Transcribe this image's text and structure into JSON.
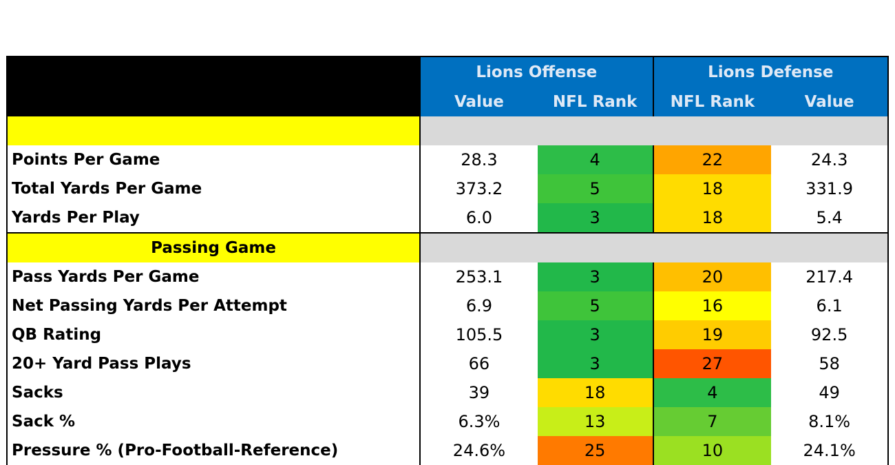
{
  "header": {
    "offense_title": "Lions Offense",
    "defense_title": "Lions Defense",
    "value_label": "Value",
    "rank_label": "NFL Rank"
  },
  "sections": [
    {
      "title": "",
      "rows": [
        {
          "label": "Points Per Game",
          "off_value": "28.3",
          "off_rank": "4",
          "off_color": "#2dbd48",
          "def_rank": "22",
          "def_color": "#ffa500",
          "def_value": "24.3"
        },
        {
          "label": "Total Yards Per Game",
          "off_value": "373.2",
          "off_rank": "5",
          "off_color": "#3fc43a",
          "def_rank": "18",
          "def_color": "#ffdc00",
          "def_value": "331.9"
        },
        {
          "label": "Yards Per Play",
          "off_value": "6.0",
          "off_rank": "3",
          "off_color": "#22b84a",
          "def_rank": "18",
          "def_color": "#ffdc00",
          "def_value": "5.4"
        }
      ]
    },
    {
      "title": "Passing Game",
      "rows": [
        {
          "label": "Pass Yards Per Game",
          "off_value": "253.1",
          "off_rank": "3",
          "off_color": "#22b84a",
          "def_rank": "20",
          "def_color": "#ffbf00",
          "def_value": "217.4"
        },
        {
          "label": "Net Passing Yards Per Attempt",
          "off_value": "6.9",
          "off_rank": "5",
          "off_color": "#3fc43a",
          "def_rank": "16",
          "def_color": "#ffff00",
          "def_value": "6.1"
        },
        {
          "label": "QB Rating",
          "off_value": "105.5",
          "off_rank": "3",
          "off_color": "#22b84a",
          "def_rank": "19",
          "def_color": "#ffcc00",
          "def_value": "92.5"
        },
        {
          "label": "20+ Yard Pass Plays",
          "off_value": "66",
          "off_rank": "3",
          "off_color": "#22b84a",
          "def_rank": "27",
          "def_color": "#ff5500",
          "def_value": "58"
        },
        {
          "label": "Sacks",
          "off_value": "39",
          "off_rank": "18",
          "off_color": "#ffdc00",
          "def_rank": "4",
          "def_color": "#2dbd48",
          "def_value": "49"
        },
        {
          "label": "Sack %",
          "off_value": "6.3%",
          "off_rank": "13",
          "off_color": "#c8ee18",
          "def_rank": "7",
          "def_color": "#66cc33",
          "def_value": "8.1%"
        },
        {
          "label": "Pressure % (Pro-Football-Reference)",
          "off_value": "24.6%",
          "off_rank": "25",
          "off_color": "#ff7a00",
          "def_rank": "10",
          "def_color": "#9be022",
          "def_value": "24.1%"
        }
      ]
    }
  ]
}
